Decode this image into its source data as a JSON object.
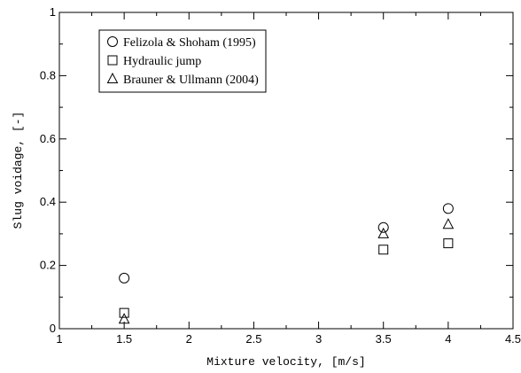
{
  "chart_data": {
    "type": "scatter",
    "title": "",
    "xlabel": "Mixture velocity, [m/s]",
    "ylabel": "Slug voidage, [-]",
    "xlim": [
      1,
      4.5
    ],
    "ylim": [
      0,
      1
    ],
    "x_ticks": [
      "1",
      "1.5",
      "2",
      "2.5",
      "3",
      "3.5",
      "4",
      "4.5"
    ],
    "y_ticks": [
      "0",
      "0.2",
      "0.4",
      "0.6",
      "0.8",
      "1"
    ],
    "grid": false,
    "legend_position": "top-left",
    "series": [
      {
        "name": "Felizola & Shoham (1995)",
        "marker": "circle",
        "x": [
          1.5,
          3.5,
          4.0
        ],
        "y": [
          0.16,
          0.32,
          0.38
        ]
      },
      {
        "name": "Hydraulic jump",
        "marker": "square",
        "x": [
          1.5,
          3.5,
          4.0
        ],
        "y": [
          0.05,
          0.25,
          0.27
        ]
      },
      {
        "name": "Brauner & Ullmann (2004)",
        "marker": "triangle",
        "x": [
          1.5,
          3.5,
          4.0
        ],
        "y": [
          0.03,
          0.3,
          0.33
        ]
      }
    ]
  }
}
